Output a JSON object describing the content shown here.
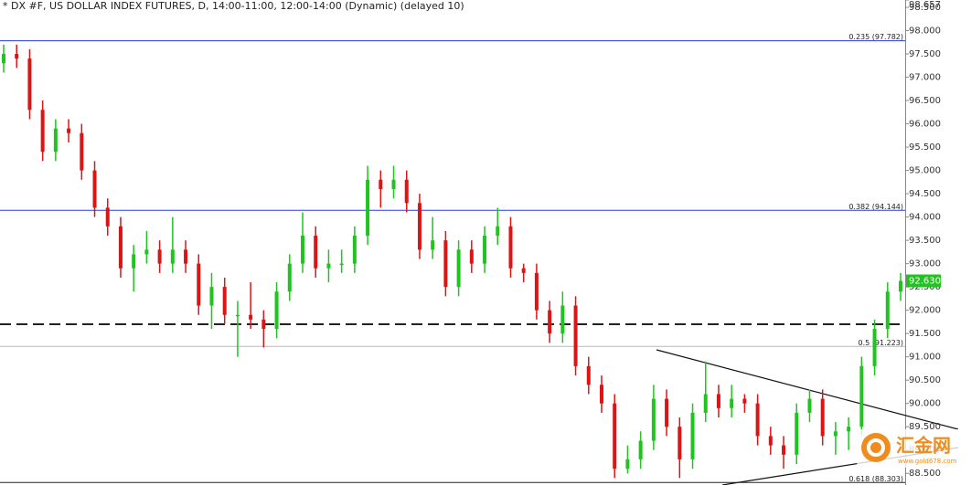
{
  "chart_data": {
    "type": "ohlc",
    "title": "* DX #F, US DOLLAR INDEX FUTURES, D, 14:00-11:00, 12:00-14:00 (Dynamic) (delayed 10)",
    "up_color": "#1fc41f",
    "down_color": "#dc1414",
    "ylim": [
      88.25,
      98.657
    ],
    "yticks": [
      {
        "value": 88.5,
        "label": "88.500"
      },
      {
        "value": 89,
        "label": "89.000"
      },
      {
        "value": 89.5,
        "label": "89.500"
      },
      {
        "value": 90,
        "label": "90.000"
      },
      {
        "value": 90.5,
        "label": "90.500"
      },
      {
        "value": 91,
        "label": "91.000"
      },
      {
        "value": 91.5,
        "label": "91.500"
      },
      {
        "value": 92,
        "label": "92.000"
      },
      {
        "value": 92.5,
        "label": "92.500"
      },
      {
        "value": 93,
        "label": "93.000"
      },
      {
        "value": 93.5,
        "label": "93.500"
      },
      {
        "value": 94,
        "label": "94.000"
      },
      {
        "value": 94.5,
        "label": "94.500"
      },
      {
        "value": 95,
        "label": "95.000"
      },
      {
        "value": 95.5,
        "label": "95.500"
      },
      {
        "value": 96,
        "label": "96.000"
      },
      {
        "value": 96.5,
        "label": "96.500"
      },
      {
        "value": 97,
        "label": "97.000"
      },
      {
        "value": 97.5,
        "label": "97.500"
      },
      {
        "value": 98,
        "label": "98.000"
      },
      {
        "value": 98.5,
        "label": "98.500"
      },
      {
        "value": 98.657,
        "label": "98.657"
      }
    ],
    "open": [
      97.3,
      97.5,
      97.4,
      96.3,
      95.4,
      95.9,
      95.8,
      95.0,
      94.2,
      93.8,
      92.9,
      93.2,
      93.3,
      93.0,
      93.3,
      93.0,
      92.1,
      92.5,
      91.9,
      91.9,
      91.8,
      91.6,
      92.4,
      93.0,
      93.6,
      92.9,
      93.0,
      93.0,
      93.6,
      94.8,
      94.6,
      94.8,
      94.3,
      93.3,
      93.5,
      92.5,
      93.3,
      93.0,
      93.6,
      93.8,
      92.9,
      92.8,
      92.0,
      91.5,
      92.1,
      90.8,
      90.4,
      90.0,
      88.6,
      88.8,
      89.2,
      90.1,
      89.5,
      88.8,
      89.8,
      90.2,
      89.9,
      90.1,
      90.0,
      89.3,
      89.1,
      88.9,
      89.8,
      90.1,
      89.3,
      89.4,
      89.5,
      90.8,
      91.6,
      92.4
    ],
    "high": [
      97.7,
      97.7,
      97.6,
      96.5,
      96.1,
      96.1,
      96.0,
      95.2,
      94.4,
      94.0,
      93.4,
      93.7,
      93.5,
      94.0,
      93.5,
      93.2,
      92.8,
      92.7,
      92.2,
      92.6,
      92.0,
      92.6,
      93.2,
      94.1,
      93.8,
      93.3,
      93.3,
      93.8,
      95.1,
      95.0,
      95.1,
      95.0,
      94.5,
      94.0,
      93.7,
      93.5,
      93.5,
      93.8,
      94.2,
      94.0,
      93.0,
      93.0,
      92.2,
      92.4,
      92.3,
      91.0,
      90.6,
      90.2,
      89.1,
      89.4,
      90.4,
      90.3,
      89.7,
      90.0,
      90.9,
      90.4,
      90.4,
      90.2,
      90.2,
      89.5,
      89.3,
      90.0,
      90.3,
      90.3,
      89.6,
      89.7,
      91.0,
      91.8,
      92.6,
      92.8
    ],
    "low": [
      97.1,
      97.2,
      96.1,
      95.2,
      95.2,
      95.6,
      94.8,
      94.0,
      93.6,
      92.7,
      92.4,
      93.0,
      92.8,
      92.8,
      92.8,
      91.9,
      91.6,
      91.7,
      91.0,
      91.6,
      91.2,
      91.4,
      92.2,
      92.8,
      92.7,
      92.6,
      92.8,
      92.8,
      93.4,
      94.2,
      94.4,
      94.1,
      93.1,
      93.1,
      92.3,
      92.3,
      92.8,
      92.8,
      93.4,
      92.7,
      92.6,
      91.8,
      91.3,
      91.3,
      90.6,
      90.2,
      89.8,
      88.4,
      88.5,
      88.6,
      89.0,
      89.3,
      88.4,
      88.6,
      89.6,
      89.7,
      89.7,
      89.8,
      89.1,
      88.9,
      88.6,
      88.7,
      89.6,
      89.1,
      88.9,
      89.0,
      89.3,
      90.6,
      91.4,
      92.2
    ],
    "close": [
      97.5,
      97.4,
      96.3,
      95.4,
      95.9,
      95.8,
      95.0,
      94.2,
      93.8,
      92.9,
      93.2,
      93.3,
      93.0,
      93.3,
      93.0,
      92.1,
      92.5,
      91.9,
      91.9,
      91.8,
      91.6,
      92.4,
      93.0,
      93.6,
      92.9,
      93.0,
      93.0,
      93.6,
      94.8,
      94.6,
      94.8,
      94.3,
      93.3,
      93.5,
      92.5,
      93.3,
      93.0,
      93.6,
      93.8,
      92.9,
      92.8,
      92.0,
      91.5,
      92.1,
      90.8,
      90.4,
      90.0,
      88.6,
      88.8,
      89.2,
      90.1,
      89.5,
      88.8,
      89.8,
      90.2,
      89.9,
      90.1,
      90.0,
      89.3,
      89.1,
      88.9,
      89.8,
      90.1,
      89.3,
      89.4,
      89.5,
      90.8,
      91.6,
      92.4,
      92.63
    ],
    "levels": [
      {
        "label": "0.235 (97.782)",
        "value": 97.782,
        "color": "#2a3ad8"
      },
      {
        "label": "0.382 (94.144)",
        "value": 94.144,
        "color": "#2a3ad8"
      },
      {
        "label": "0.5 (91.223)",
        "value": 91.223,
        "color": "#b8b8b8"
      },
      {
        "label": "0.618 (88.303)",
        "value": 88.303,
        "color": "#222222"
      }
    ],
    "hlines": [
      {
        "value": 91.7,
        "style": "dashed",
        "color": "#222222"
      }
    ],
    "last_price": {
      "value": 92.63,
      "label": "92.630",
      "color": "#1fc41f"
    },
    "watermark": {
      "text": "汇金网",
      "url": "www.gold678.com"
    }
  }
}
